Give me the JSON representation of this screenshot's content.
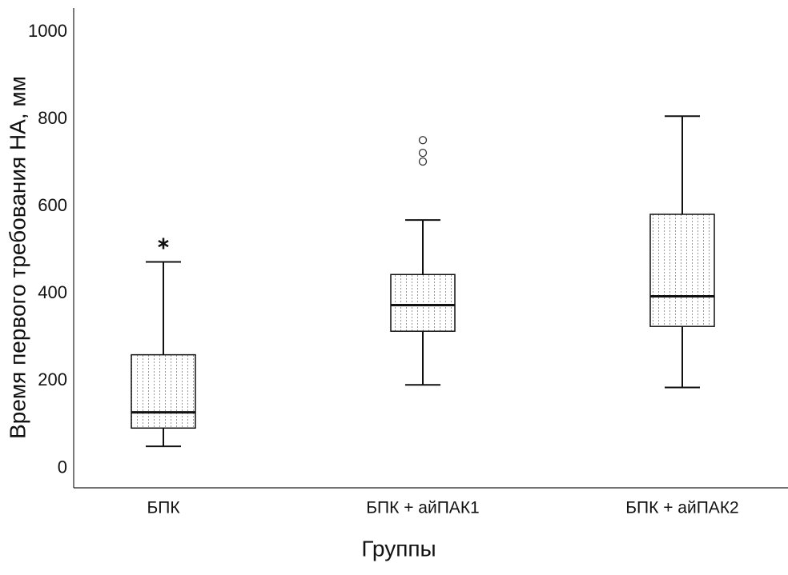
{
  "chart_data": {
    "type": "box",
    "x_label": "Группы",
    "y_label": "Время первого требования НА, мм",
    "categories": [
      "БПК",
      "БПК + айПАК1",
      "БПК + айПАК2"
    ],
    "boxes": [
      {
        "whisker_low": 50,
        "q1": 92,
        "median": 128,
        "q3": 260,
        "whisker_high": 473,
        "outliers": [],
        "extremes": [
          515
        ]
      },
      {
        "whisker_low": 191,
        "q1": 314,
        "median": 374,
        "q3": 444,
        "whisker_high": 569,
        "outliers": [
          752,
          723,
          703
        ],
        "extremes": []
      },
      {
        "whisker_low": 185,
        "q1": 325,
        "median": 394,
        "q3": 582,
        "whisker_high": 807,
        "outliers": [],
        "extremes": []
      }
    ],
    "ylim": [
      -45,
      1055
    ],
    "yticks": [
      0,
      200,
      400,
      600,
      800,
      1000
    ]
  }
}
